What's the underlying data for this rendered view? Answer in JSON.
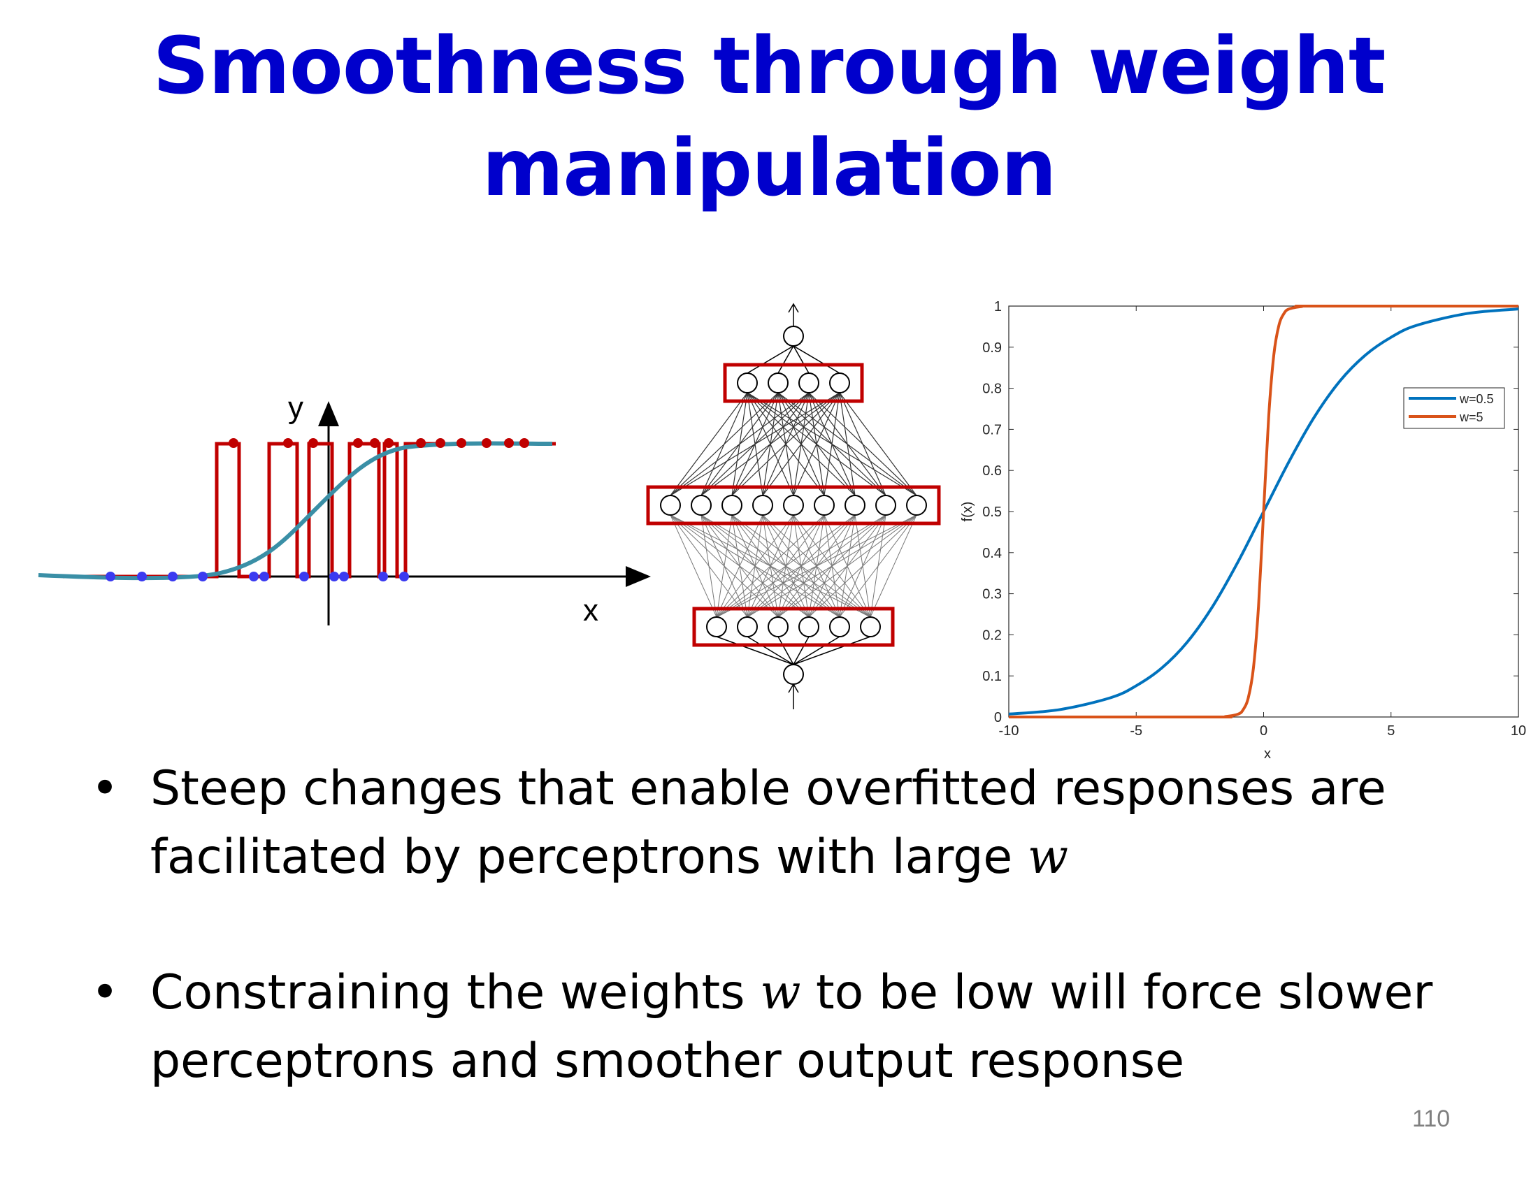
{
  "slide": {
    "title_line1": "Smoothness through weight",
    "title_line2": "manipulation",
    "page_number": "110"
  },
  "left_plot": {
    "y_label": "y",
    "x_label": "x",
    "step_color": "#c00000",
    "smooth_color": "#3a8fa6",
    "blue_point_color": "#3a3af0"
  },
  "network": {
    "box_color": "#c00000",
    "layers": [
      6,
      9,
      4
    ],
    "input_nodes": 1,
    "output_nodes": 1
  },
  "bullets": [
    {
      "bullet": "•",
      "text_before": "Steep changes that enable overfitted responses are facilitated by perceptrons with large ",
      "var": "w",
      "text_after": ""
    },
    {
      "bullet": "•",
      "text_before": "Constraining the weights ",
      "var": "w",
      "text_after": " to be low will force slower perceptrons and smoother output response"
    }
  ],
  "chart_data": {
    "type": "line",
    "xlabel": "x",
    "ylabel": "f(x)",
    "xlim": [
      -10,
      10
    ],
    "ylim": [
      0,
      1
    ],
    "xticks": [
      "-10",
      "-5",
      "0",
      "5",
      "10"
    ],
    "yticks": [
      "0",
      "0.1",
      "0.2",
      "0.3",
      "0.4",
      "0.5",
      "0.6",
      "0.7",
      "0.8",
      "0.9",
      "1"
    ],
    "legend_position": "top-right",
    "grid": false,
    "series": [
      {
        "name": "w=0.5",
        "color": "#0072bd",
        "x": [
          -10,
          -8,
          -6,
          -5,
          -4,
          -3,
          -2,
          -1,
          0,
          1,
          2,
          3,
          4,
          5,
          6,
          8,
          10
        ],
        "y": [
          0.007,
          0.018,
          0.047,
          0.076,
          0.119,
          0.182,
          0.269,
          0.378,
          0.5,
          0.622,
          0.731,
          0.818,
          0.881,
          0.924,
          0.953,
          0.982,
          0.993
        ]
      },
      {
        "name": "w=5",
        "color": "#d95319",
        "x": [
          -10,
          -2,
          -1.5,
          -1,
          -0.8,
          -0.6,
          -0.4,
          -0.2,
          0,
          0.2,
          0.4,
          0.6,
          0.8,
          1,
          1.5,
          2,
          10
        ],
        "y": [
          0,
          0.0,
          0.001,
          0.007,
          0.018,
          0.047,
          0.119,
          0.269,
          0.5,
          0.731,
          0.881,
          0.953,
          0.982,
          0.993,
          0.999,
          1.0,
          1.0
        ]
      }
    ]
  }
}
